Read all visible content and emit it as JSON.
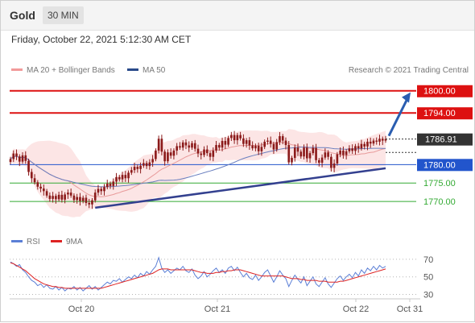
{
  "header": {
    "instrument": "Gold",
    "timeframe": "30 MIN"
  },
  "timestamp": "Friday, October 22, 2021 5:12:30 AM CET",
  "legend": {
    "ma20_label": "MA 20 + Bollinger Bands",
    "ma50_label": "MA 50",
    "credit": "Research © 2021 Trading Central"
  },
  "colors": {
    "resistance": "#dd1111",
    "support_pivot": "#2255cc",
    "support": "#33aa33",
    "candle": "#8b1a1a",
    "trendline": "#33408f",
    "rsi": "#5b7fd6",
    "rsi_ma": "#dd2222",
    "bollinger_fill": "#fbe1e1",
    "ma20": "#e89a9a",
    "ma50": "#6a7fbf"
  },
  "chart_data": [
    {
      "type": "candlestick",
      "ylim": [
        1765,
        1803
      ],
      "x_ticks": [
        "Oct 20",
        "Oct 21",
        "Oct 22",
        "Oct 31"
      ],
      "current_price": {
        "label": "1786.91",
        "value": 1786.91
      },
      "levels": [
        {
          "label": "1800.00",
          "value": 1800.0,
          "kind": "resistance"
        },
        {
          "label": "1794.00",
          "value": 1794.0,
          "kind": "resistance"
        },
        {
          "label": "1780.00",
          "value": 1780.0,
          "kind": "pivot"
        },
        {
          "label": "1775.00",
          "value": 1775.0,
          "kind": "support"
        },
        {
          "label": "1770.00",
          "value": 1770.0,
          "kind": "support"
        }
      ],
      "close": [
        1781.5,
        1783.0,
        1782.2,
        1780.8,
        1782.5,
        1781.0,
        1778.0,
        1776.3,
        1775.2,
        1774.0,
        1773.5,
        1772.8,
        1771.6,
        1770.7,
        1771.5,
        1770.6,
        1771.8,
        1770.5,
        1771.9,
        1772.4,
        1771.6,
        1770.4,
        1771.2,
        1770.1,
        1771.0,
        1769.6,
        1769.2,
        1770.3,
        1772.4,
        1773.4,
        1772.8,
        1773.9,
        1774.8,
        1774.2,
        1775.4,
        1776.6,
        1776.0,
        1777.2,
        1776.3,
        1777.8,
        1778.5,
        1779.4,
        1778.8,
        1779.7,
        1780.4,
        1779.6,
        1780.6,
        1781.5,
        1783.8,
        1787.0,
        1783.5,
        1780.9,
        1783.3,
        1782.4,
        1783.8,
        1785.0,
        1784.6,
        1786.0,
        1785.2,
        1784.6,
        1785.8,
        1784.3,
        1783.0,
        1782.6,
        1784.1,
        1783.1,
        1782.1,
        1783.8,
        1785.3,
        1784.6,
        1786.4,
        1785.4,
        1787.2,
        1788.0,
        1786.6,
        1788.0,
        1787.1,
        1785.6,
        1786.6,
        1785.2,
        1784.4,
        1785.1,
        1783.6,
        1784.8,
        1786.2,
        1786.5,
        1785.6,
        1784.1,
        1786.1,
        1787.7,
        1786.5,
        1785.3,
        1780.6,
        1781.8,
        1784.6,
        1783.5,
        1782.2,
        1784.6,
        1781.7,
        1783.1,
        1784.5,
        1781.2,
        1780.5,
        1781.9,
        1783.3,
        1782.1,
        1779.1,
        1780.3,
        1782.8,
        1783.8,
        1782.6,
        1783.6,
        1784.4,
        1783.7,
        1785.0,
        1784.4,
        1785.6,
        1784.9,
        1786.2,
        1785.7,
        1786.5,
        1786.2,
        1787.0,
        1786.5,
        1786.91
      ]
    },
    {
      "type": "line",
      "title": "RSI",
      "ylim": [
        25,
        80
      ],
      "y_ticks": [
        70,
        50,
        30
      ],
      "series": [
        {
          "name": "RSI",
          "values": [
            67,
            65,
            62,
            64,
            58,
            55,
            50,
            46,
            44,
            40,
            42,
            38,
            41,
            37,
            36,
            39,
            35,
            38,
            34,
            37,
            36,
            39,
            35,
            38,
            34,
            37,
            40,
            36,
            39,
            35,
            38,
            41,
            44,
            42,
            46,
            45,
            48,
            44,
            47,
            50,
            48,
            52,
            49,
            54,
            51,
            56,
            53,
            58,
            62,
            72,
            60,
            55,
            58,
            54,
            57,
            60,
            58,
            62,
            57,
            55,
            59,
            52,
            48,
            51,
            56,
            50,
            53,
            57,
            60,
            55,
            58,
            54,
            60,
            62,
            57,
            61,
            55,
            50,
            54,
            49,
            47,
            52,
            46,
            50,
            55,
            58,
            51,
            44,
            50,
            57,
            52,
            48,
            39,
            46,
            52,
            47,
            43,
            50,
            40,
            45,
            50,
            42,
            39,
            44,
            49,
            42,
            38,
            43,
            48,
            51,
            46,
            50,
            53,
            49,
            55,
            51,
            58,
            54,
            60,
            57,
            62,
            58,
            63,
            60,
            62
          ]
        },
        {
          "name": "9MA",
          "values": [
            66,
            65,
            63,
            61,
            59,
            57,
            54,
            51,
            48,
            46,
            44,
            42,
            41,
            40,
            39,
            39,
            38,
            38,
            37,
            37,
            37,
            37,
            37,
            37,
            37,
            37,
            37,
            37,
            37,
            37,
            37,
            38,
            39,
            40,
            41,
            42,
            43,
            44,
            45,
            46,
            47,
            48,
            49,
            50,
            51,
            52,
            53,
            54,
            56,
            58,
            59,
            59,
            59,
            58,
            58,
            58,
            58,
            58,
            58,
            58,
            58,
            57,
            56,
            55,
            55,
            54,
            54,
            54,
            55,
            55,
            56,
            56,
            57,
            57,
            58,
            58,
            58,
            57,
            56,
            55,
            54,
            53,
            52,
            51,
            51,
            51,
            51,
            51,
            51,
            51,
            51,
            50,
            49,
            48,
            48,
            48,
            47,
            47,
            46,
            46,
            46,
            46,
            45,
            45,
            45,
            44,
            44,
            44,
            44,
            45,
            45,
            46,
            47,
            48,
            49,
            50,
            51,
            52,
            53,
            54,
            55,
            56,
            57,
            58,
            59
          ]
        }
      ]
    }
  ]
}
